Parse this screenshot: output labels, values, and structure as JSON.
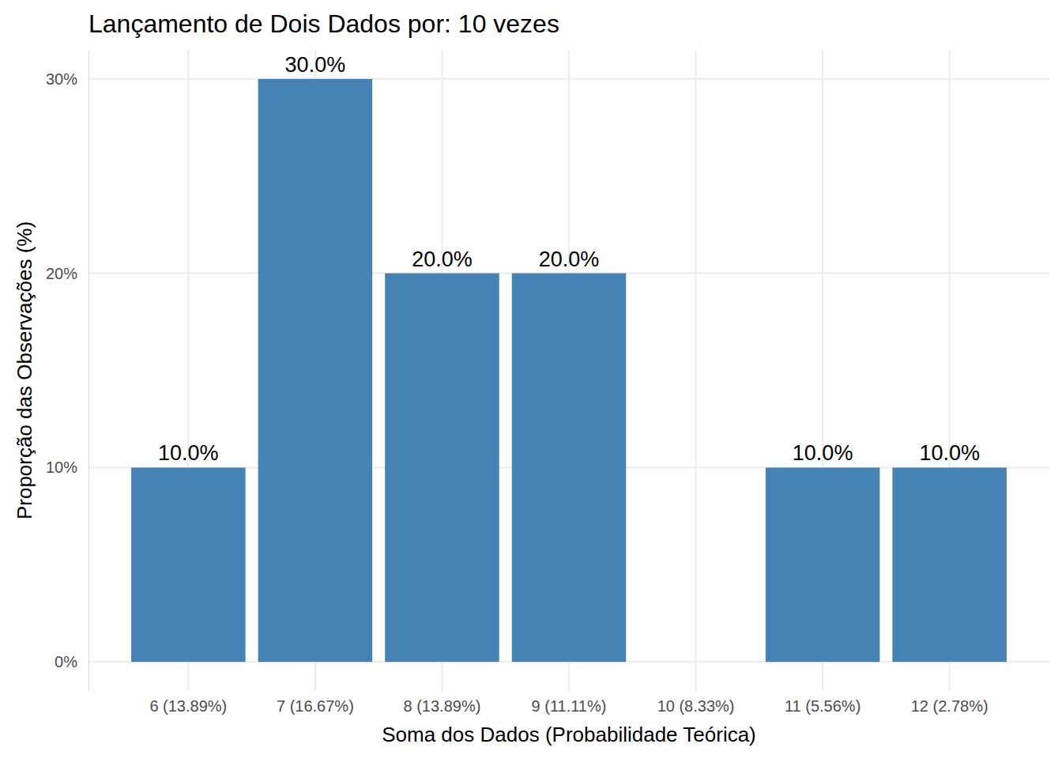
{
  "chart_data": {
    "type": "bar",
    "title": "Lançamento de Dois Dados por: 10 vezes",
    "x_label": "Soma dos Dados (Probabilidade Teórica)",
    "y_label": "Proporção das Observações (%)",
    "categories": [
      "6 (13.89%)",
      "7 (16.67%)",
      "8 (13.89%)",
      "9 (11.11%)",
      "10 (8.33%)",
      "11 (5.56%)",
      "12 (2.78%)"
    ],
    "values": [
      10,
      30,
      20,
      20,
      0,
      10,
      10
    ],
    "value_labels": [
      "10.0%",
      "30.0%",
      "20.0%",
      "20.0%",
      null,
      "10.0%",
      "10.0%"
    ],
    "color": "#4682b4",
    "ylim": [
      -1.5,
      31.5
    ],
    "yticks": [
      {
        "value": 0,
        "label": "0%"
      },
      {
        "value": 10,
        "label": "10%"
      },
      {
        "value": 20,
        "label": "20%"
      },
      {
        "value": 30,
        "label": "30%"
      }
    ],
    "grid": true,
    "data_labels": true
  }
}
